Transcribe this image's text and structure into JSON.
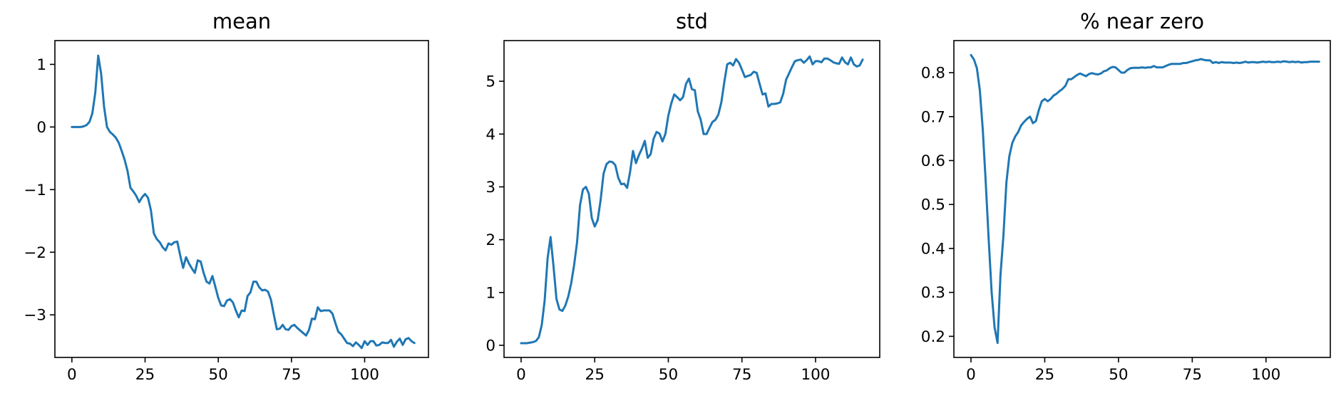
{
  "colors": {
    "series": "#1f77b4",
    "axes": "#000000",
    "background": "#ffffff"
  },
  "chart_data": [
    {
      "type": "line",
      "title": "mean",
      "xlabel": "",
      "ylabel": "",
      "xlim": [
        -5.8,
        121.8
      ],
      "ylim": [
        -3.68,
        1.38
      ],
      "xticks": [
        0,
        25,
        50,
        75,
        100
      ],
      "xtick_labels": [
        "0",
        "25",
        "50",
        "75",
        "100"
      ],
      "yticks": [
        1,
        0,
        -1,
        -2,
        -3
      ],
      "ytick_labels": [
        "1",
        "0",
        "−1",
        "−2",
        "−3"
      ],
      "grid": false,
      "series": [
        {
          "values": [
            0.0,
            0.0,
            0.0,
            0.0,
            0.01,
            0.03,
            0.08,
            0.22,
            0.55,
            1.14,
            0.85,
            0.32,
            0.0,
            -0.08,
            -0.12,
            -0.17,
            -0.25,
            -0.38,
            -0.52,
            -0.7,
            -0.97,
            -1.03,
            -1.1,
            -1.2,
            -1.12,
            -1.07,
            -1.13,
            -1.33,
            -1.7,
            -1.79,
            -1.84,
            -1.92,
            -1.97,
            -1.86,
            -1.88,
            -1.84,
            -1.83,
            -2.05,
            -2.25,
            -2.08,
            -2.18,
            -2.26,
            -2.33,
            -2.13,
            -2.15,
            -2.33,
            -2.47,
            -2.5,
            -2.38,
            -2.55,
            -2.73,
            -2.85,
            -2.86,
            -2.77,
            -2.75,
            -2.8,
            -2.93,
            -3.04,
            -2.93,
            -2.94,
            -2.7,
            -2.64,
            -2.47,
            -2.47,
            -2.56,
            -2.61,
            -2.6,
            -2.63,
            -2.76,
            -3.0,
            -3.23,
            -3.22,
            -3.16,
            -3.23,
            -3.24,
            -3.18,
            -3.16,
            -3.21,
            -3.25,
            -3.29,
            -3.33,
            -3.24,
            -3.06,
            -3.07,
            -2.88,
            -2.94,
            -2.93,
            -2.93,
            -2.93,
            -2.98,
            -3.13,
            -3.27,
            -3.31,
            -3.38,
            -3.45,
            -3.46,
            -3.5,
            -3.44,
            -3.48,
            -3.53,
            -3.42,
            -3.48,
            -3.42,
            -3.42,
            -3.49,
            -3.48,
            -3.44,
            -3.45,
            -3.45,
            -3.4,
            -3.51,
            -3.43,
            -3.38,
            -3.48,
            -3.39,
            -3.37,
            -3.42,
            -3.45
          ]
        }
      ]
    },
    {
      "type": "line",
      "title": "std",
      "xlabel": "",
      "ylabel": "",
      "xlim": [
        -5.8,
        121.8
      ],
      "ylim": [
        -0.23,
        5.77
      ],
      "xticks": [
        0,
        25,
        50,
        75,
        100
      ],
      "xtick_labels": [
        "0",
        "25",
        "50",
        "75",
        "100"
      ],
      "yticks": [
        5,
        4,
        3,
        2,
        1,
        0
      ],
      "ytick_labels": [
        "5",
        "4",
        "3",
        "2",
        "1",
        "0"
      ],
      "grid": false,
      "series": [
        {
          "values": [
            0.04,
            0.04,
            0.04,
            0.05,
            0.06,
            0.08,
            0.15,
            0.38,
            0.85,
            1.65,
            2.05,
            1.5,
            0.88,
            0.68,
            0.65,
            0.75,
            0.92,
            1.17,
            1.52,
            1.95,
            2.65,
            2.95,
            3.0,
            2.87,
            2.41,
            2.25,
            2.37,
            2.75,
            3.25,
            3.43,
            3.48,
            3.47,
            3.41,
            3.17,
            3.05,
            3.06,
            2.98,
            3.28,
            3.68,
            3.45,
            3.6,
            3.72,
            3.87,
            3.55,
            3.62,
            3.91,
            4.04,
            4.01,
            3.86,
            4.0,
            4.35,
            4.58,
            4.75,
            4.7,
            4.64,
            4.7,
            4.95,
            5.05,
            4.85,
            4.83,
            4.43,
            4.27,
            4.0,
            4.0,
            4.12,
            4.23,
            4.27,
            4.37,
            4.6,
            4.98,
            5.32,
            5.35,
            5.3,
            5.42,
            5.35,
            5.22,
            5.08,
            5.1,
            5.12,
            5.18,
            5.16,
            4.95,
            4.75,
            4.77,
            4.52,
            4.57,
            4.57,
            4.58,
            4.6,
            4.76,
            5.03,
            5.15,
            5.27,
            5.38,
            5.4,
            5.41,
            5.35,
            5.4,
            5.47,
            5.32,
            5.38,
            5.38,
            5.36,
            5.43,
            5.43,
            5.4,
            5.36,
            5.34,
            5.33,
            5.45,
            5.36,
            5.32,
            5.45,
            5.32,
            5.28,
            5.3,
            5.41
          ]
        }
      ]
    },
    {
      "type": "line",
      "title": "% near zero",
      "xlabel": "",
      "ylabel": "",
      "xlim": [
        -5.8,
        121.8
      ],
      "ylim": [
        0.152,
        0.873
      ],
      "xticks": [
        0,
        25,
        50,
        75,
        100
      ],
      "xtick_labels": [
        "0",
        "25",
        "50",
        "75",
        "100"
      ],
      "yticks": [
        0.8,
        0.7,
        0.6,
        0.5,
        0.4,
        0.3,
        0.2
      ],
      "ytick_labels": [
        "0.8",
        "0.7",
        "0.6",
        "0.5",
        "0.4",
        "0.3",
        "0.2"
      ],
      "grid": false,
      "series": [
        {
          "values": [
            0.84,
            0.83,
            0.81,
            0.76,
            0.67,
            0.55,
            0.42,
            0.3,
            0.22,
            0.185,
            0.34,
            0.43,
            0.55,
            0.61,
            0.64,
            0.655,
            0.665,
            0.68,
            0.688,
            0.695,
            0.7,
            0.685,
            0.69,
            0.715,
            0.735,
            0.74,
            0.735,
            0.74,
            0.748,
            0.752,
            0.758,
            0.763,
            0.77,
            0.785,
            0.785,
            0.79,
            0.795,
            0.798,
            0.795,
            0.792,
            0.797,
            0.799,
            0.797,
            0.796,
            0.798,
            0.803,
            0.805,
            0.81,
            0.813,
            0.812,
            0.806,
            0.8,
            0.8,
            0.806,
            0.81,
            0.811,
            0.811,
            0.811,
            0.812,
            0.811,
            0.812,
            0.812,
            0.815,
            0.812,
            0.812,
            0.812,
            0.815,
            0.818,
            0.82,
            0.82,
            0.82,
            0.82,
            0.822,
            0.822,
            0.824,
            0.826,
            0.828,
            0.829,
            0.831,
            0.829,
            0.828,
            0.828,
            0.822,
            0.824,
            0.822,
            0.824,
            0.823,
            0.823,
            0.823,
            0.822,
            0.823,
            0.822,
            0.823,
            0.825,
            0.823,
            0.824,
            0.824,
            0.823,
            0.824,
            0.825,
            0.824,
            0.825,
            0.824,
            0.824,
            0.825,
            0.824,
            0.826,
            0.825,
            0.824,
            0.825,
            0.824,
            0.825,
            0.823,
            0.824,
            0.824,
            0.825,
            0.825,
            0.825,
            0.825
          ]
        }
      ]
    }
  ]
}
